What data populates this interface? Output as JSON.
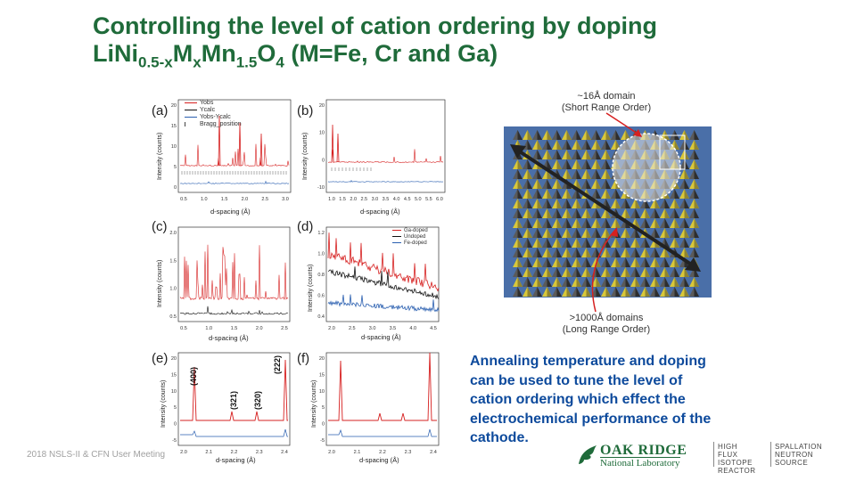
{
  "title": {
    "prefix": "Controlling the level of cation ordering by doping",
    "f1": "LiNi",
    "s1": "0.5-x",
    "f2": "M",
    "s2": "x",
    "f3": "Mn",
    "s3": "1.5",
    "f4": "O",
    "s4": "4",
    "suffix": " (M=Fe, Cr and Ga)"
  },
  "footer": "2018 NSLS-II & CFN User Meeting",
  "caption": "Annealing temperature and doping can be used to tune the level of cation ordering which effect the electrochemical performance of the cathode.",
  "panels": {
    "a": {
      "label": "(a)",
      "ylabel": "Intensity (counts)",
      "xlabel": "d-spacing (Å)",
      "yticks": [
        "20",
        "15",
        "10",
        "5",
        "0"
      ],
      "xticks": [
        "0.5",
        "1.0",
        "1.5",
        "2.0",
        "2.5",
        "3.0"
      ]
    },
    "b": {
      "label": "(b)",
      "ylabel": "Intensity (counts)",
      "xlabel": "d-spacing (Å)",
      "yticks": [
        "20",
        "10",
        "0",
        "-10"
      ],
      "xticks": [
        "1.0",
        "1.5",
        "2.0",
        "2.5",
        "3.0",
        "3.5",
        "4.0",
        "4.5",
        "5.0",
        "5.5",
        "6.0"
      ]
    },
    "c": {
      "label": "(c)",
      "ylabel": "Intensity (counts)",
      "xlabel": "d-spacing (Å)",
      "yticks": [
        "2.0",
        "1.5",
        "1.0",
        "0.5"
      ],
      "xticks": [
        "0.5",
        "1.0",
        "1.5",
        "2.0",
        "2.5"
      ]
    },
    "d": {
      "label": "(d)",
      "ylabel": "Intensity (counts)",
      "xlabel": "d-spacing (Å)",
      "yticks": [
        "1.2",
        "1.0",
        "0.8",
        "0.6",
        "0.4"
      ],
      "xticks": [
        "2.0",
        "2.5",
        "3.0",
        "3.5",
        "4.0",
        "4.5"
      ]
    },
    "e": {
      "label": "(e)",
      "ylabel": "Intensity (counts)",
      "xlabel": "d-spacing (Å)",
      "yticks": [
        "20",
        "15",
        "10",
        "5",
        "0",
        "-5"
      ],
      "xticks": [
        "2.0",
        "2.1",
        "2.2",
        "2.3",
        "2.4"
      ],
      "peaks": [
        "(400)",
        "(321)",
        "(320)",
        "(222)"
      ]
    },
    "f": {
      "label": "(f)",
      "ylabel": "Intensity (counts)",
      "xlabel": "d-spacing (Å)",
      "yticks": [
        "20",
        "15",
        "10",
        "5",
        "0",
        "-5"
      ],
      "xticks": [
        "2.0",
        "2.1",
        "2.2",
        "2.3",
        "2.4"
      ]
    }
  },
  "legend_a": [
    "Yobs",
    "Ycalc",
    "Yobs-Ycalc",
    "Bragg_position"
  ],
  "legend_d": [
    "Ga-doped",
    "Undoped",
    "Fe-doped"
  ],
  "colors": {
    "title": "#1f6b3a",
    "caption": "#0d4a9c",
    "obs": "#d62020",
    "diff": "#2a5fb0",
    "black": "#111111"
  },
  "structure": {
    "top_label_1": "~16Å domain",
    "top_label_2": "(Short Range Order)",
    "bottom_label_1": ">1000Å domains",
    "bottom_label_2": "(Long Range Order)"
  },
  "logos": {
    "lab1": "OAK RIDGE",
    "lab2": "National Laboratory",
    "hfir1": "HIGH FLUX",
    "hfir2": "ISOTOPE",
    "hfir3": "REACTOR",
    "sns1": "SPALLATION",
    "sns2": "NEUTRON",
    "sns3": "SOURCE"
  }
}
